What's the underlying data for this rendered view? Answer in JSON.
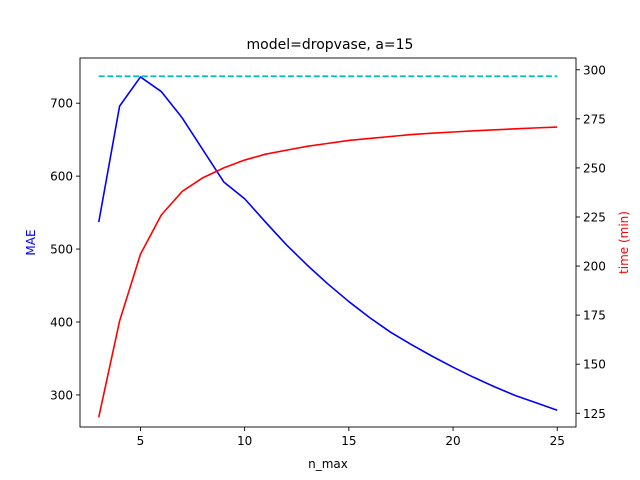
{
  "chart_data": {
    "type": "line",
    "title": "model=dropvase, a=15",
    "xlabel": "n_max",
    "xlim": [
      2.1,
      25.9
    ],
    "x_ticks": [
      5,
      10,
      15,
      20,
      25
    ],
    "left_axis": {
      "label": "MAE",
      "color": "#0000ff",
      "ylim": [
        256,
        762
      ],
      "ticks": [
        300,
        400,
        500,
        600,
        700
      ]
    },
    "right_axis": {
      "label": "time (min)",
      "color": "#ff0000",
      "ylim": [
        118,
        306
      ],
      "ticks": [
        125,
        150,
        175,
        200,
        225,
        250,
        275,
        300
      ]
    },
    "grid": false,
    "series": [
      {
        "axis": "left",
        "color": "#0000ff",
        "style": "solid",
        "x": [
          3,
          4,
          5,
          6,
          7,
          8,
          9,
          10,
          11,
          12,
          13,
          14,
          15,
          16,
          17,
          18,
          19,
          20,
          21,
          22,
          23,
          24,
          25
        ],
        "values": [
          537,
          696,
          736,
          716,
          680,
          636,
          592,
          569,
          537,
          506,
          478,
          452,
          428,
          406,
          386,
          369,
          353,
          338,
          324,
          311,
          299,
          289,
          279
        ]
      },
      {
        "axis": "left",
        "color": "#00bfbf",
        "style": "dashed",
        "x": [
          3,
          25
        ],
        "values": [
          737,
          737
        ]
      },
      {
        "axis": "right",
        "color": "#ff0000",
        "style": "solid",
        "x": [
          3,
          4,
          5,
          6,
          7,
          8,
          9,
          10,
          11,
          12,
          13,
          14,
          15,
          16,
          17,
          18,
          19,
          20,
          21,
          22,
          23,
          24,
          25
        ],
        "values": [
          123,
          172,
          206,
          226,
          238,
          245,
          250,
          254,
          257,
          259,
          261,
          262.5,
          264,
          265,
          266,
          267,
          267.7,
          268.3,
          268.9,
          269.4,
          269.9,
          270.4,
          270.8
        ]
      }
    ]
  }
}
